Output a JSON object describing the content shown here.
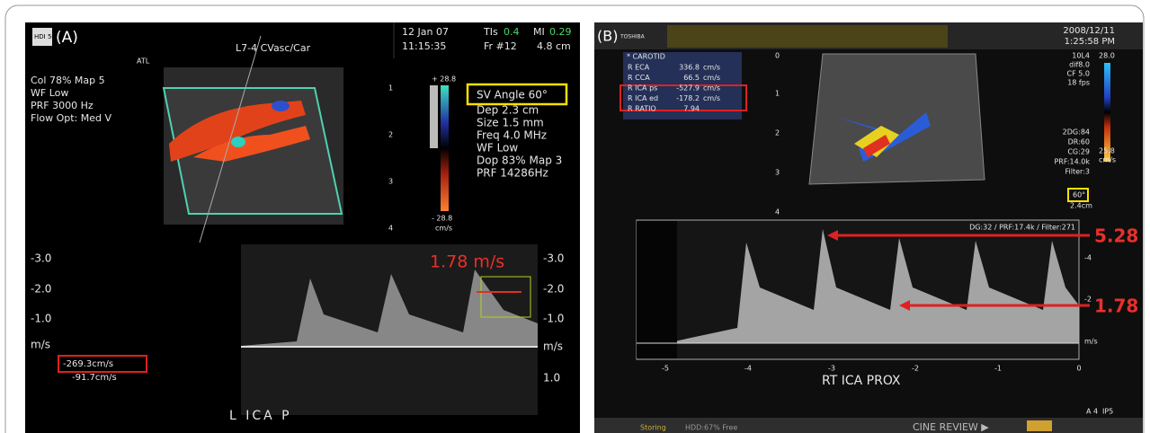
{
  "panel_a": {
    "label": "(A)",
    "logo": "HDI 5000",
    "date": "12 Jan 07",
    "time": "11:15:35",
    "tis_label": "TIs",
    "tis_value": "0.4",
    "mi_label": "MI",
    "mi_value": "0.29",
    "frame": "Fr #12",
    "depth": "4.8 cm",
    "probe": "L7-4 CVasc/Car",
    "brand": "ATL",
    "color_settings": [
      "Col 78%  Map 5",
      "WF Low",
      "PRF 3000  Hz",
      "Flow Opt: Med V"
    ],
    "depth_scale": [
      "1",
      "2",
      "3",
      "4"
    ],
    "color_max": "+ 28.8",
    "color_min": "- 28.8",
    "color_unit": "cm/s",
    "sv_angle": "SV Angle 60°",
    "doppler_settings": [
      "Dep 2.3  cm",
      "Size 1.5  mm",
      "Freq 4.0 MHz",
      "WF Low",
      "Dop 83%  Map 3",
      "PRF 14286Hz"
    ],
    "velocity_scale_left": [
      "-3.0",
      "-2.0",
      "-1.0",
      "m/s"
    ],
    "velocity_scale_right": [
      "-3.0",
      "-2.0",
      "-1.0",
      "m/s",
      "1.0"
    ],
    "peak_annotation": "1.78 m/s",
    "measurements": [
      "-269.3cm/s",
      "-91.7cm/s"
    ],
    "site": "L  ICA  P"
  },
  "panel_b": {
    "label": "(B)",
    "brand": "TOSHIBA",
    "date": "2008/12/11",
    "time": "1:25:58 PM",
    "table_title": "* CAROTID",
    "table_rows": [
      [
        "R ECA",
        "336.8",
        "cm/s"
      ],
      [
        "R CCA",
        "66.5",
        "cm/s"
      ],
      [
        "R ICA ps",
        "-527.9",
        "cm/s"
      ],
      [
        "R ICA ed",
        "-178.2",
        "cm/s"
      ],
      [
        "R RATIO",
        "7.94",
        ""
      ]
    ],
    "depth_scale": [
      "0",
      "1",
      "2",
      "3",
      "4"
    ],
    "image_settings": [
      "10L4",
      "dif8.0",
      "CF 5.0",
      "18 fps"
    ],
    "color_max": "28.0",
    "gain_settings": [
      "2DG:84",
      "DR:60",
      "CG:29",
      "PRF:14.0k",
      "Filter:3"
    ],
    "color_min": "25.8",
    "color_unit": "cm/s",
    "angle": "60°",
    "sv_depth": "2.4cm",
    "doppler_settings": "DG:32 /  PRF:17.4k / Filter:271",
    "peak_systolic": "5.28",
    "end_diastolic": "1.78",
    "time_axis": [
      "-5",
      "-4",
      "-3",
      "-2",
      "-1",
      "0"
    ],
    "velocity_axis": [
      "-4",
      "-2",
      "m/s"
    ],
    "site": "RT ICA PROX",
    "mode": "A 4",
    "preset": "IP5",
    "status": "Storing",
    "disk": "HDD:67% Free",
    "cine": "CINE REVIEW ▶"
  }
}
